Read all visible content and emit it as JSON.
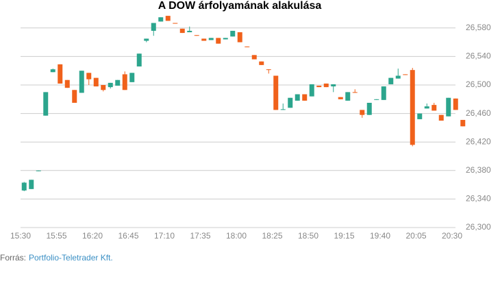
{
  "chart_data": {
    "type": "candlestick",
    "title": "A DOW árfolyamának alakulása",
    "source_label": "Forrás:",
    "source": "Portfolio-Teletrader Kft.",
    "categories": [
      "15:30",
      null,
      null,
      null,
      null,
      "15:55",
      null,
      null,
      null,
      null,
      "16:20",
      null,
      null,
      null,
      null,
      "16:45",
      null,
      null,
      null,
      null,
      "17:10",
      null,
      null,
      null,
      null,
      "17:35",
      null,
      null,
      null,
      null,
      "18:00",
      null,
      null,
      null,
      null,
      "18:25",
      null,
      null,
      null,
      null,
      "18:50",
      null,
      null,
      null,
      null,
      "19:15",
      null,
      null,
      null,
      null,
      "19:40",
      null,
      null,
      null,
      null,
      "20:05",
      null,
      null,
      null,
      null,
      "20:30",
      null
    ],
    "open": [
      26352,
      26354,
      26379,
      26457,
      26518,
      26529,
      26507,
      26493,
      26489,
      26517,
      26510,
      26500,
      26497,
      26499,
      26515,
      26504,
      26526,
      26562,
      26576,
      26589,
      26597,
      26587,
      26579,
      26574,
      26570,
      26565,
      26563,
      26566,
      26564,
      26568,
      26574,
      26554,
      26542,
      26533,
      26522,
      26513,
      26465,
      26468,
      26478,
      26487,
      26484,
      26499,
      26502,
      26498,
      26483,
      26478,
      26490,
      26465,
      26458,
      26479,
      26479,
      26501,
      26509,
      26515,
      26521,
      26452,
      26467,
      26472,
      26458,
      26456,
      26481,
      26451
    ],
    "high": [
      26364,
      26367,
      26380,
      26490,
      26523,
      26529,
      26507,
      26493,
      26520,
      26517,
      26510,
      26500,
      26503,
      26507,
      26519,
      26517,
      26544,
      26565,
      26587,
      26595,
      26597,
      26587,
      26579,
      26582,
      26570,
      26565,
      26566,
      26566,
      26566,
      26576,
      26574,
      26554,
      26542,
      26533,
      26522,
      26513,
      26474,
      26482,
      26487,
      26487,
      26501,
      26499,
      26502,
      26501,
      26483,
      26490,
      26494,
      26465,
      26475,
      26480,
      26498,
      26510,
      26523,
      26515,
      26524,
      26460,
      26474,
      26475,
      26458,
      26482,
      26481,
      26451
    ],
    "low": [
      26351,
      26354,
      26379,
      26457,
      26518,
      26502,
      26496,
      26475,
      26489,
      26500,
      26498,
      26491,
      26495,
      26499,
      26493,
      26504,
      26526,
      26560,
      26569,
      26589,
      26590,
      26586,
      26573,
      26574,
      26569,
      26562,
      26563,
      26558,
      26564,
      26568,
      26560,
      26553,
      26536,
      26528,
      26516,
      26465,
      26465,
      26468,
      26478,
      26478,
      26484,
      26497,
      26497,
      26490,
      26480,
      26478,
      26489,
      26454,
      26458,
      26479,
      26479,
      26501,
      26509,
      26514,
      26414,
      26452,
      26467,
      26464,
      26450,
      26456,
      26465,
      26442
    ],
    "close": [
      26363,
      26367,
      26380,
      26490,
      26522,
      26502,
      26496,
      26475,
      26520,
      26508,
      26498,
      26493,
      26503,
      26507,
      26493,
      26517,
      26544,
      26565,
      26587,
      26595,
      26590,
      26586,
      26573,
      26576,
      26569,
      26562,
      26566,
      26558,
      26566,
      26576,
      26560,
      26553,
      26536,
      26528,
      26521,
      26465,
      26466,
      26482,
      26487,
      26478,
      26501,
      26497,
      26497,
      26501,
      26480,
      26490,
      26489,
      26458,
      26475,
      26480,
      26498,
      26510,
      26513,
      26514,
      26416,
      26460,
      26470,
      26464,
      26450,
      26482,
      26465,
      26442
    ],
    "up_color": "#2ca58d",
    "down_color": "#f0611b",
    "ylim": [
      26300,
      26600
    ],
    "yticks": [
      {
        "value": 26300,
        "label": "26,300"
      },
      {
        "value": 26340,
        "label": "26,340"
      },
      {
        "value": 26380,
        "label": "26,380"
      },
      {
        "value": 26420,
        "label": "26,420"
      },
      {
        "value": 26460,
        "label": "26,460"
      },
      {
        "value": 26500,
        "label": "26,500"
      },
      {
        "value": 26540,
        "label": "26,540"
      },
      {
        "value": 26580,
        "label": "26,580"
      }
    ],
    "grid": true
  }
}
